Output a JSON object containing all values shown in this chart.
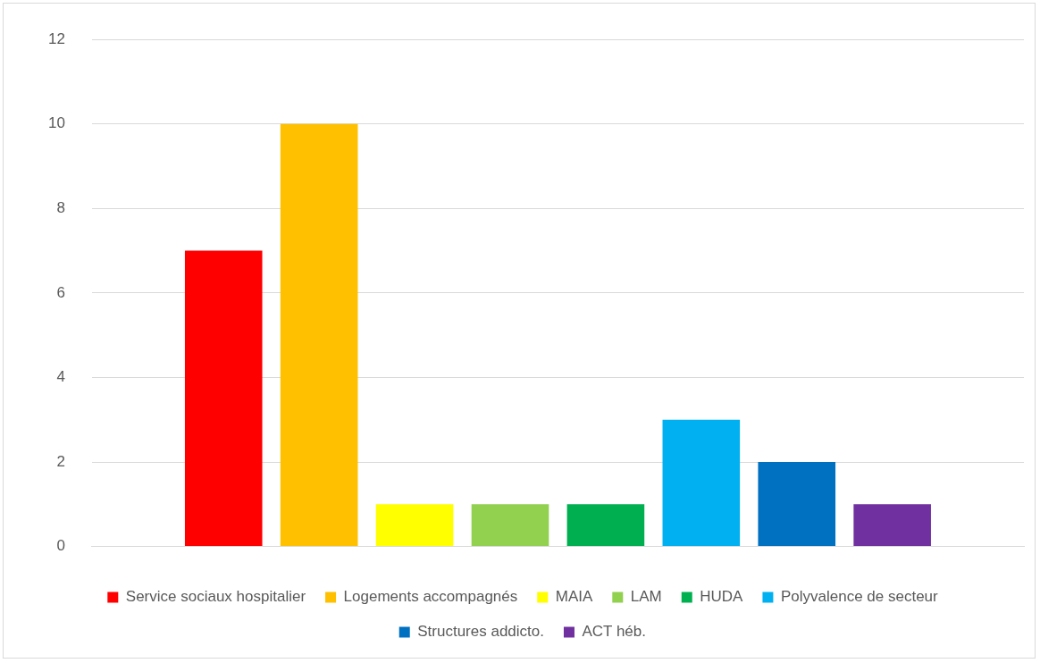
{
  "chart_data": {
    "type": "bar",
    "categories": [
      null
    ],
    "series": [
      {
        "name": "Service sociaux hospitalier",
        "color": "#ff0000",
        "values": [
          7
        ]
      },
      {
        "name": "Logements accompagnés",
        "color": "#ffc000",
        "values": [
          10
        ]
      },
      {
        "name": "MAIA",
        "color": "#ffff00",
        "values": [
          1
        ]
      },
      {
        "name": "LAM",
        "color": "#92d050",
        "values": [
          1
        ]
      },
      {
        "name": "HUDA",
        "color": "#00b050",
        "values": [
          1
        ]
      },
      {
        "name": "Polyvalence de secteur",
        "color": "#00b0f0",
        "values": [
          3
        ]
      },
      {
        "name": "Structures addicto.",
        "color": "#0070c0",
        "values": [
          2
        ]
      },
      {
        "name": "ACT héb.",
        "color": "#7030a0",
        "values": [
          1
        ]
      }
    ],
    "ylim": [
      0,
      12
    ],
    "yticks": [
      0,
      2,
      4,
      6,
      8,
      10,
      12
    ],
    "grid": "y",
    "legend": "bottom"
  }
}
